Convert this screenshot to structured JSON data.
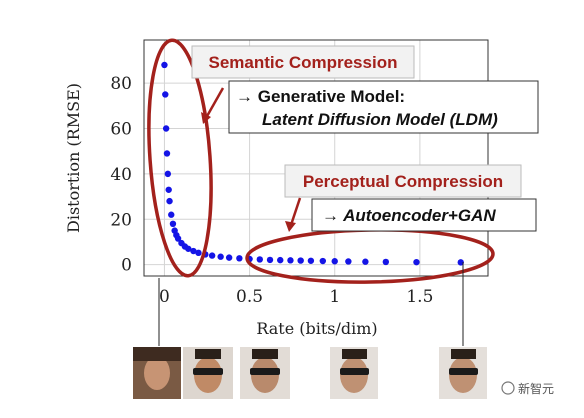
{
  "chart_data": {
    "type": "scatter",
    "xlabel": "Rate (bits/dim)",
    "ylabel": "Distortion (RMSE)",
    "xlim": [
      -0.12,
      1.9
    ],
    "ylim": [
      -5,
      99
    ],
    "x_ticks": [
      "0",
      "0.5",
      "1",
      "1.5"
    ],
    "y_ticks": [
      "0",
      "20",
      "40",
      "60",
      "80"
    ],
    "grid": true,
    "legend": "none",
    "series": [
      {
        "color": "#1414e6",
        "x": [
          0.0,
          0.005,
          0.01,
          0.015,
          0.02,
          0.025,
          0.03,
          0.04,
          0.05,
          0.06,
          0.07,
          0.08,
          0.1,
          0.12,
          0.14,
          0.17,
          0.2,
          0.24,
          0.28,
          0.33,
          0.38,
          0.44,
          0.5,
          0.56,
          0.62,
          0.68,
          0.74,
          0.8,
          0.86,
          0.93,
          1.0,
          1.08,
          1.18,
          1.3,
          1.48,
          1.74
        ],
        "y": [
          88,
          75,
          60,
          49,
          40,
          33,
          28,
          22,
          18,
          15,
          13,
          11.5,
          9.5,
          8,
          7,
          6,
          5.2,
          4.5,
          4.0,
          3.5,
          3.1,
          2.8,
          2.5,
          2.3,
          2.1,
          2.0,
          1.9,
          1.8,
          1.7,
          1.6,
          1.5,
          1.4,
          1.3,
          1.2,
          1.1,
          1.0
        ]
      }
    ],
    "annotations": [
      {
        "title": "Semantic Compression",
        "lines": [
          "→ Generative Model:",
          "Latent Diffusion Model (LDM)"
        ]
      },
      {
        "title": "Perceptual Compression",
        "lines": [
          "→ Autoencoder+GAN"
        ]
      }
    ]
  },
  "watermark": "新智元",
  "colors": {
    "annotation_red": "#a3211c",
    "points": "#1414e6",
    "box_fill": "#f2f2f2"
  }
}
